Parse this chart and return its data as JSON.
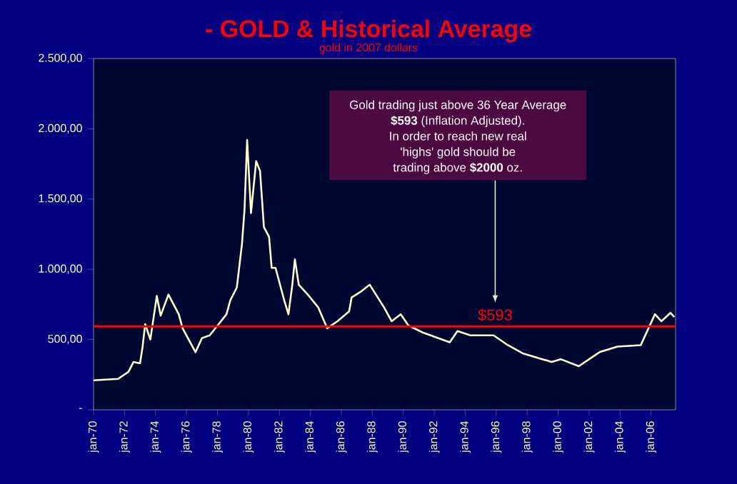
{
  "chart_data": {
    "type": "line",
    "title": "- GOLD & Historical Average",
    "subtitle": "gold in 2007 dollars",
    "x": [
      "1970-01",
      "1971-08",
      "1972-04",
      "1972-08",
      "1973-01",
      "1973-03",
      "1973-05",
      "1973-09",
      "1974-02",
      "1974-05",
      "1974-11",
      "1975-07",
      "1975-10",
      "1976-08",
      "1977-01",
      "1977-07",
      "1978-02",
      "1978-08",
      "1978-11",
      "1979-04",
      "1979-08",
      "1979-10",
      "1979-12",
      "1980-03",
      "1980-07",
      "1980-10",
      "1981-01",
      "1981-05",
      "1981-07",
      "1981-10",
      "1982-05",
      "1982-08",
      "1982-11",
      "1983-01",
      "1983-04",
      "1983-11",
      "1984-07",
      "1985-02",
      "1985-10",
      "1986-07",
      "1986-09",
      "1987-04",
      "1987-11",
      "1988-10",
      "1989-04",
      "1989-11",
      "1990-05",
      "1991-04",
      "1993-01",
      "1993-07",
      "1994-05",
      "1995-11",
      "1996-10",
      "1997-10",
      "1999-08",
      "2000-03",
      "2001-05",
      "2002-09",
      "2003-11",
      "2005-05",
      "2005-11",
      "2006-04",
      "2006-09",
      "2007-04",
      "2007-07"
    ],
    "series": [
      {
        "color": "#ffffcc",
        "values": [
          210,
          220,
          270,
          340,
          330,
          450,
          610,
          500,
          810,
          670,
          820,
          680,
          580,
          410,
          510,
          530,
          610,
          680,
          780,
          870,
          1180,
          1430,
          1920,
          1400,
          1770,
          1700,
          1300,
          1230,
          1010,
          1010,
          770,
          680,
          890,
          1070,
          890,
          820,
          730,
          580,
          630,
          700,
          800,
          840,
          890,
          730,
          630,
          680,
          600,
          550,
          480,
          560,
          530,
          530,
          460,
          400,
          340,
          360,
          310,
          410,
          450,
          460,
          580,
          680,
          630,
          690,
          660
        ]
      }
    ],
    "xlim": [
      "1970-01",
      "2007-08"
    ],
    "xticks": [
      {
        "value": "1970-01",
        "label": "jan-70"
      },
      {
        "value": "1972-01",
        "label": "jan-72"
      },
      {
        "value": "1974-01",
        "label": "jan-74"
      },
      {
        "value": "1976-01",
        "label": "jan-76"
      },
      {
        "value": "1978-01",
        "label": "jan-78"
      },
      {
        "value": "1980-01",
        "label": "jan-80"
      },
      {
        "value": "1982-01",
        "label": "jan-82"
      },
      {
        "value": "1984-01",
        "label": "jan-84"
      },
      {
        "value": "1986-01",
        "label": "jan-86"
      },
      {
        "value": "1988-01",
        "label": "jan-88"
      },
      {
        "value": "1990-01",
        "label": "jan-90"
      },
      {
        "value": "1992-01",
        "label": "jan-92"
      },
      {
        "value": "1994-01",
        "label": "jan-94"
      },
      {
        "value": "1996-01",
        "label": "jan-96"
      },
      {
        "value": "1998-01",
        "label": "jan-98"
      },
      {
        "value": "2000-01",
        "label": "jan-00"
      },
      {
        "value": "2002-01",
        "label": "jan-02"
      },
      {
        "value": "2004-01",
        "label": "jan-04"
      },
      {
        "value": "2006-01",
        "label": "jan-06"
      }
    ],
    "ylim": [
      0,
      2500
    ],
    "yticks": [
      {
        "value": 0,
        "label": "-"
      },
      {
        "value": 500,
        "label": "500,00"
      },
      {
        "value": 1000,
        "label": "1.000,00"
      },
      {
        "value": 1500,
        "label": "1.500,00"
      },
      {
        "value": 2000,
        "label": "2.000,00"
      },
      {
        "value": 2500,
        "label": "2.500,00"
      }
    ],
    "ref_lines": [
      {
        "axis": "y",
        "value": 593,
        "label": "$593",
        "color": "#ff0000"
      }
    ],
    "annotations": [
      "Gold trading just above 36 Year Average",
      "**$593** (Inflation Adjusted).",
      "In order to reach new real",
      "'highs' gold should be",
      "trading above **$2000** oz."
    ]
  }
}
